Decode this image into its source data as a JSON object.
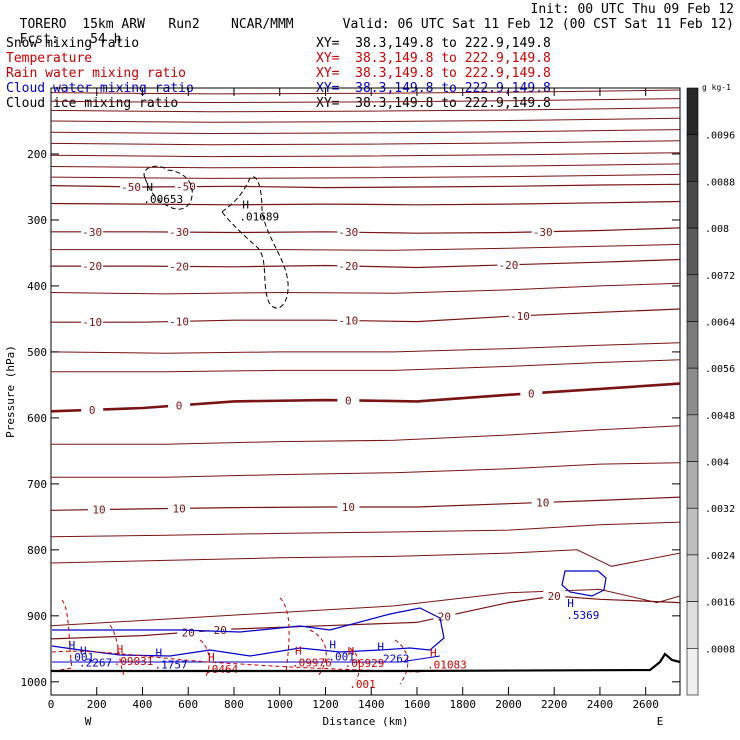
{
  "header": {
    "model": "TORERO",
    "resolution": "15km ARW",
    "run": "Run2",
    "org": "NCAR/MMM",
    "init": "Init: 00 UTC Thu 09 Feb 12",
    "fcst_label": "Fcst:",
    "fcst_value": "54 h",
    "valid": "Valid: 06 UTC Sat 11 Feb 12 (00 CST Sat 11 Feb 12)"
  },
  "fields": [
    {
      "name": "Snow mixing ratio",
      "xy": "XY=  38.3,149.8 to 222.9,149.8",
      "color": "#000000"
    },
    {
      "name": "Temperature",
      "xy": "XY=  38.3,149.8 to 222.9,149.8",
      "color": "#cc0000"
    },
    {
      "name": "Rain water mixing ratio",
      "xy": "XY=  38.3,149.8 to 222.9,149.8",
      "color": "#cc0000"
    },
    {
      "name": "Cloud water mixing ratio",
      "xy": "XY=  38.3,149.8 to 222.9,149.8",
      "color": "#0000cc"
    },
    {
      "name": "Cloud ice mixing ratio",
      "xy": "XY=  38.3,149.8 to 222.9,149.8",
      "color": "#000000"
    }
  ],
  "chart_data": {
    "type": "contour-cross-section",
    "xlabel": "Distance (km)",
    "ylabel": "Pressure (hPa)",
    "xlim": [
      0,
      2750
    ],
    "ylim": [
      1020,
      100
    ],
    "x_ticks": [
      0,
      200,
      400,
      600,
      800,
      1000,
      1200,
      1400,
      1600,
      1800,
      2000,
      2200,
      2400,
      2600
    ],
    "y_ticks": [
      200,
      300,
      400,
      500,
      600,
      700,
      800,
      900,
      1000
    ],
    "x_end_labels": {
      "left": "W",
      "right": "E"
    },
    "temperature_contours": [
      {
        "value": -50,
        "label": "-50",
        "x": [
          0,
          400,
          800,
          1200,
          1600,
          2000,
          2400,
          2750
        ],
        "p": [
          248,
          250,
          249,
          251,
          250,
          249,
          247,
          246
        ],
        "labels": [
          {
            "text": "-50",
            "x": 350
          },
          {
            "text": "-50",
            "x": 590
          }
        ]
      },
      {
        "value": -40,
        "label": "",
        "x": [
          0,
          400,
          800,
          1200,
          1600,
          2000,
          2400,
          2750
        ],
        "p": [
          275,
          276,
          277,
          276,
          277,
          276,
          274,
          272
        ],
        "labels": []
      },
      {
        "value": -30,
        "label": "-30",
        "x": [
          0,
          400,
          800,
          1200,
          1600,
          2000,
          2400,
          2750
        ],
        "p": [
          318,
          318,
          319,
          318,
          320,
          319,
          316,
          312
        ],
        "labels": [
          {
            "text": "-30",
            "x": 180
          },
          {
            "text": "-30",
            "x": 560
          },
          {
            "text": "-30",
            "x": 1300
          },
          {
            "text": "-30",
            "x": 2150
          }
        ]
      },
      {
        "value": -20,
        "label": "-20",
        "x": [
          0,
          400,
          800,
          1200,
          1600,
          2000,
          2400,
          2750
        ],
        "p": [
          370,
          370,
          371,
          369,
          372,
          368,
          364,
          360
        ],
        "labels": [
          {
            "text": "-20",
            "x": 180
          },
          {
            "text": "-20",
            "x": 560
          },
          {
            "text": "-20",
            "x": 1300
          },
          {
            "text": "-20",
            "x": 2000
          }
        ]
      },
      {
        "value": -10,
        "label": "-10",
        "x": [
          0,
          400,
          800,
          1200,
          1600,
          2000,
          2400,
          2750
        ],
        "p": [
          455,
          455,
          452,
          452,
          454,
          446,
          440,
          435
        ],
        "labels": [
          {
            "text": "-10",
            "x": 180
          },
          {
            "text": "-10",
            "x": 560
          },
          {
            "text": "-10",
            "x": 1300
          },
          {
            "text": "-10",
            "x": 2050
          }
        ]
      },
      {
        "value": 0,
        "label": "0",
        "x": [
          0,
          400,
          800,
          1200,
          1400,
          1600,
          2000,
          2400,
          2750
        ],
        "p": [
          590,
          585,
          575,
          573,
          574,
          575,
          565,
          556,
          548
        ],
        "labels": [
          {
            "text": "0",
            "x": 180
          },
          {
            "text": "0",
            "x": 560
          },
          {
            "text": "0",
            "x": 1300
          },
          {
            "text": "0",
            "x": 2100
          }
        ]
      },
      {
        "value": 10,
        "label": "10",
        "x": [
          0,
          400,
          800,
          1200,
          1600,
          2000,
          2400,
          2750
        ],
        "p": [
          740,
          738,
          736,
          735,
          735,
          730,
          725,
          720
        ],
        "labels": [
          {
            "text": "10",
            "x": 210
          },
          {
            "text": "10",
            "x": 560
          },
          {
            "text": "10",
            "x": 1300
          },
          {
            "text": "10",
            "x": 2150
          }
        ]
      },
      {
        "value": 20,
        "label": "20",
        "x": [
          0,
          400,
          800,
          1200,
          1600,
          2000,
          2200,
          2400,
          2750
        ],
        "p": [
          935,
          930,
          920,
          915,
          910,
          880,
          870,
          875,
          880
        ],
        "labels": [
          {
            "text": "20",
            "x": 600
          },
          {
            "text": "20",
            "x": 740
          },
          {
            "text": "20",
            "x": 1720
          },
          {
            "text": "20",
            "x": 2200
          }
        ]
      }
    ],
    "cloud_ice_maxima": [
      {
        "label": "H",
        "value": ".00653",
        "x": 430,
        "p": 268
      },
      {
        "label": "H",
        "value": ".01689",
        "x": 850,
        "p": 295
      }
    ],
    "cloud_water_maxima": [
      {
        "label": "H",
        "value": ".5369",
        "x": 2270,
        "p": 900
      },
      {
        "label": "H",
        "value": ".2267",
        "x": 140,
        "p": 972
      },
      {
        "label": "H",
        "value": ".001",
        "x": 90,
        "p": 964
      },
      {
        "label": "H",
        "value": ".1757",
        "x": 470,
        "p": 975
      },
      {
        "label": "H",
        "value": ".2262",
        "x": 1440,
        "p": 966
      },
      {
        "label": "H",
        "value": ".001",
        "x": 1230,
        "p": 963
      }
    ],
    "rain_maxima": [
      {
        "label": "H",
        "value": ".09031",
        "x": 300,
        "p": 970
      },
      {
        "label": "H",
        "value": ".0464",
        "x": 700,
        "p": 982
      },
      {
        "label": "H",
        "value": ".09976",
        "x": 1080,
        "p": 972
      },
      {
        "label": "H",
        "value": ".06929",
        "x": 1310,
        "p": 973
      },
      {
        "label": "H",
        "value": ".01083",
        "x": 1670,
        "p": 975
      },
      {
        "label": "",
        "value": ".001",
        "x": 1330,
        "p": 1005
      }
    ],
    "colorbar": {
      "unit": "g kg-1",
      "ticks": [
        ".0096",
        ".0088",
        ".008",
        ".0072",
        ".0064",
        ".0056",
        ".0048",
        ".004",
        ".0032",
        ".0024",
        ".0016",
        ".0008"
      ]
    }
  }
}
